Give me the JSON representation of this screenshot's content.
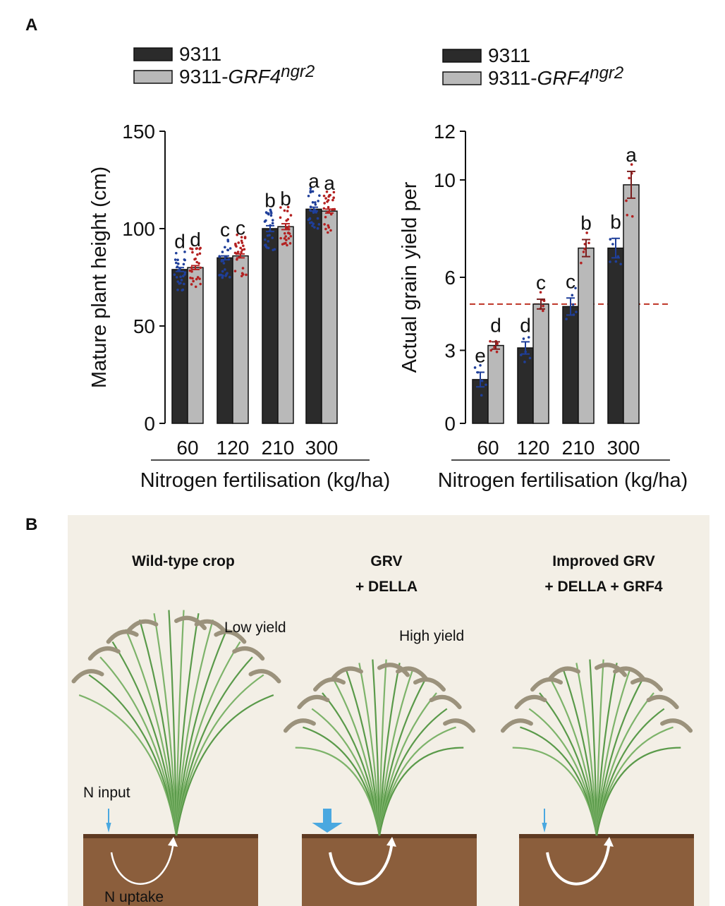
{
  "panel_labels": {
    "a": "A",
    "b": "B"
  },
  "legend": {
    "wt": "9311",
    "mut_prefix": "9311-",
    "mut_gene": "GRF4",
    "mut_sup": "ngr2"
  },
  "colors": {
    "wt_bar": "#2b2b2b",
    "mut_bar": "#b9b9b9",
    "wt_dots": "#1f3f9a",
    "mut_dots": "#b32020",
    "threshold_line": "#c0392b",
    "soil": "#8b5e3c",
    "background_b": "#f3efe6",
    "arrow": "#4aa8e0"
  },
  "chart_data": [
    {
      "type": "bar",
      "title": "",
      "xlabel": "Nitrogen fertilisation (kg/ha)",
      "ylabel": "Mature plant height (cm)",
      "categories": [
        "60",
        "120",
        "210",
        "300"
      ],
      "ylim": [
        0,
        150
      ],
      "yticks": [
        0,
        50,
        100,
        150
      ],
      "series": [
        {
          "name": "9311",
          "values": [
            79,
            85,
            100,
            110
          ],
          "errors": [
            1,
            1,
            1.5,
            1
          ],
          "letters": [
            "d",
            "c",
            "b",
            "a"
          ]
        },
        {
          "name": "9311-GRF4ngr2",
          "values": [
            80,
            86,
            101,
            109
          ],
          "errors": [
            1,
            1,
            1.5,
            1
          ],
          "letters": [
            "d",
            "c",
            "b",
            "a"
          ]
        }
      ]
    },
    {
      "type": "bar",
      "title": "",
      "xlabel": "Nitrogen fertilisation (kg/ha)",
      "ylabel": "Actual grain yield per",
      "categories": [
        "60",
        "120",
        "210",
        "300"
      ],
      "ylim": [
        0,
        12
      ],
      "yticks": [
        0,
        3,
        6,
        10,
        12
      ],
      "reference_line": 4.9,
      "series": [
        {
          "name": "9311",
          "values": [
            1.8,
            3.1,
            4.8,
            7.2
          ],
          "errors": [
            0.3,
            0.25,
            0.35,
            0.4
          ],
          "letters": [
            "e",
            "d",
            "c",
            "b"
          ]
        },
        {
          "name": "9311-GRF4ngr2",
          "values": [
            3.2,
            4.9,
            7.2,
            9.8
          ],
          "errors": [
            0.15,
            0.2,
            0.35,
            0.55
          ],
          "letters": [
            "d",
            "c",
            "b",
            "a"
          ]
        }
      ]
    }
  ],
  "panel_b": {
    "columns": [
      {
        "title_lines": [
          "Wild-type crop"
        ],
        "yield_label": "Low yield",
        "input_label": "N input",
        "uptake_label": "N uptake"
      },
      {
        "title_lines": [
          "GRV",
          "+ DELLA"
        ],
        "yield_label": "High yield"
      },
      {
        "title_lines": [
          "Improved GRV",
          "+ DELLA + GRF4"
        ]
      }
    ]
  }
}
